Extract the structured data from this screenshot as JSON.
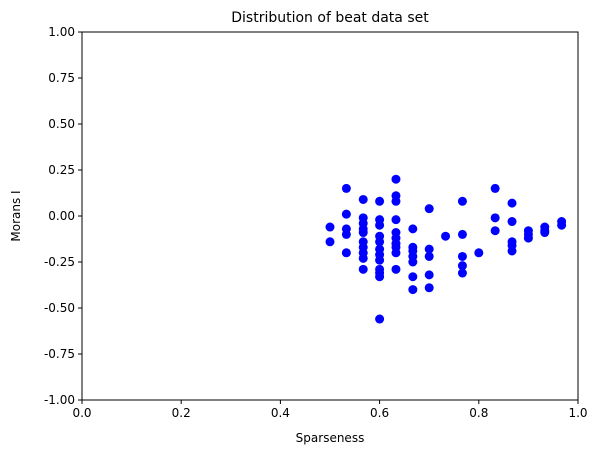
{
  "chart_data": {
    "type": "scatter",
    "title": "Distribution of beat data set",
    "xlabel": "Sparseness",
    "ylabel": "Morans I",
    "xlim": [
      0.0,
      1.0
    ],
    "ylim": [
      -1.0,
      1.0
    ],
    "xticks": [
      "0.0",
      "0.2",
      "0.4",
      "0.6",
      "0.8",
      "1.0"
    ],
    "yticks": [
      "-1.00",
      "-0.75",
      "-0.50",
      "-0.25",
      "0.00",
      "0.25",
      "0.50",
      "0.75",
      "1.00"
    ],
    "grid": false,
    "marker_color": "#0000ff",
    "series": [
      {
        "points": [
          {
            "x": 0.5,
            "y": -0.06
          },
          {
            "x": 0.5,
            "y": -0.14
          },
          {
            "x": 0.533,
            "y": 0.15
          },
          {
            "x": 0.533,
            "y": 0.01
          },
          {
            "x": 0.533,
            "y": -0.07
          },
          {
            "x": 0.533,
            "y": -0.1
          },
          {
            "x": 0.533,
            "y": -0.2
          },
          {
            "x": 0.567,
            "y": 0.09
          },
          {
            "x": 0.567,
            "y": -0.01
          },
          {
            "x": 0.567,
            "y": -0.04
          },
          {
            "x": 0.567,
            "y": -0.07
          },
          {
            "x": 0.567,
            "y": -0.09
          },
          {
            "x": 0.567,
            "y": -0.14
          },
          {
            "x": 0.567,
            "y": -0.17
          },
          {
            "x": 0.567,
            "y": -0.2
          },
          {
            "x": 0.567,
            "y": -0.23
          },
          {
            "x": 0.567,
            "y": -0.29
          },
          {
            "x": 0.6,
            "y": 0.08
          },
          {
            "x": 0.6,
            "y": -0.02
          },
          {
            "x": 0.6,
            "y": -0.05
          },
          {
            "x": 0.6,
            "y": -0.11
          },
          {
            "x": 0.6,
            "y": -0.14
          },
          {
            "x": 0.6,
            "y": -0.18
          },
          {
            "x": 0.6,
            "y": -0.21
          },
          {
            "x": 0.6,
            "y": -0.24
          },
          {
            "x": 0.6,
            "y": -0.29
          },
          {
            "x": 0.6,
            "y": -0.31
          },
          {
            "x": 0.6,
            "y": -0.33
          },
          {
            "x": 0.6,
            "y": -0.56
          },
          {
            "x": 0.633,
            "y": 0.2
          },
          {
            "x": 0.633,
            "y": 0.11
          },
          {
            "x": 0.633,
            "y": 0.08
          },
          {
            "x": 0.633,
            "y": -0.02
          },
          {
            "x": 0.633,
            "y": -0.09
          },
          {
            "x": 0.633,
            "y": -0.12
          },
          {
            "x": 0.633,
            "y": -0.15
          },
          {
            "x": 0.633,
            "y": -0.17
          },
          {
            "x": 0.633,
            "y": -0.2
          },
          {
            "x": 0.633,
            "y": -0.29
          },
          {
            "x": 0.667,
            "y": -0.07
          },
          {
            "x": 0.667,
            "y": -0.17
          },
          {
            "x": 0.667,
            "y": -0.19
          },
          {
            "x": 0.667,
            "y": -0.22
          },
          {
            "x": 0.667,
            "y": -0.25
          },
          {
            "x": 0.667,
            "y": -0.33
          },
          {
            "x": 0.667,
            "y": -0.4
          },
          {
            "x": 0.7,
            "y": 0.04
          },
          {
            "x": 0.7,
            "y": -0.18
          },
          {
            "x": 0.7,
            "y": -0.22
          },
          {
            "x": 0.7,
            "y": -0.32
          },
          {
            "x": 0.7,
            "y": -0.39
          },
          {
            "x": 0.733,
            "y": -0.11
          },
          {
            "x": 0.767,
            "y": 0.08
          },
          {
            "x": 0.767,
            "y": -0.1
          },
          {
            "x": 0.767,
            "y": -0.22
          },
          {
            "x": 0.767,
            "y": -0.27
          },
          {
            "x": 0.767,
            "y": -0.31
          },
          {
            "x": 0.8,
            "y": -0.2
          },
          {
            "x": 0.833,
            "y": 0.15
          },
          {
            "x": 0.833,
            "y": -0.01
          },
          {
            "x": 0.833,
            "y": -0.08
          },
          {
            "x": 0.867,
            "y": 0.07
          },
          {
            "x": 0.867,
            "y": -0.03
          },
          {
            "x": 0.867,
            "y": -0.14
          },
          {
            "x": 0.867,
            "y": -0.16
          },
          {
            "x": 0.867,
            "y": -0.19
          },
          {
            "x": 0.9,
            "y": -0.08
          },
          {
            "x": 0.9,
            "y": -0.1
          },
          {
            "x": 0.9,
            "y": -0.12
          },
          {
            "x": 0.933,
            "y": -0.06
          },
          {
            "x": 0.933,
            "y": -0.08
          },
          {
            "x": 0.933,
            "y": -0.09
          },
          {
            "x": 0.967,
            "y": -0.03
          },
          {
            "x": 0.967,
            "y": -0.05
          }
        ]
      }
    ]
  }
}
